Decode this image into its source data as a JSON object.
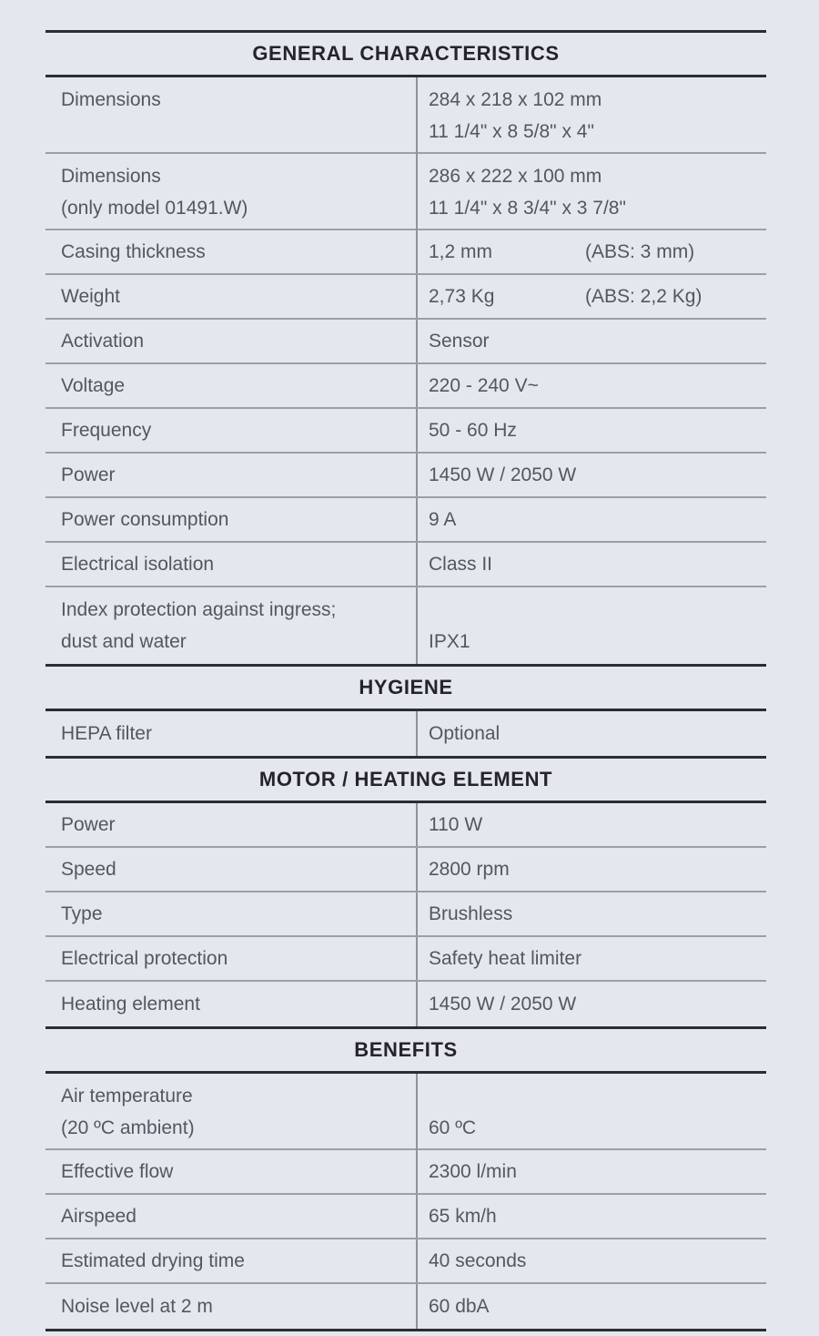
{
  "colors": {
    "background": "#e4e7ee",
    "text": "#53575f",
    "header_text": "#232529",
    "thick_rule": "#2b2d31",
    "thin_rule": "#9aa0a7",
    "column_divider": "#8e949c"
  },
  "table": {
    "sections": [
      {
        "title": "GENERAL CHARACTERISTICS",
        "rows": [
          {
            "label": [
              "Dimensions"
            ],
            "value": [
              "284 x 218 x 102 mm",
              "11 1/4\" x 8 5/8\" x 4\""
            ]
          },
          {
            "label": [
              "Dimensions",
              "(only model 01491.W)"
            ],
            "value": [
              "286 x 222 x 100 mm",
              "11 1/4\" x 8 3/4\" x 3 7/8\""
            ]
          },
          {
            "label": [
              "Casing thickness"
            ],
            "value": [
              "1,2 mm"
            ],
            "value2": "(ABS: 3 mm)"
          },
          {
            "label": [
              "Weight"
            ],
            "value": [
              "2,73 Kg"
            ],
            "value2": "(ABS: 2,2 Kg)"
          },
          {
            "label": [
              "Activation"
            ],
            "value": [
              "Sensor"
            ]
          },
          {
            "label": [
              "Voltage"
            ],
            "value": [
              "220 - 240 V~"
            ]
          },
          {
            "label": [
              "Frequency"
            ],
            "value": [
              "50 - 60 Hz"
            ]
          },
          {
            "label": [
              "Power"
            ],
            "value": [
              "1450 W / 2050 W"
            ]
          },
          {
            "label": [
              "Power consumption"
            ],
            "value": [
              "9 A"
            ]
          },
          {
            "label": [
              "Electrical isolation"
            ],
            "value": [
              "Class II"
            ]
          },
          {
            "label": [
              "Index protection against ingress;",
              "dust and water"
            ],
            "value": [
              "IPX1"
            ],
            "value_align": "bottom"
          }
        ]
      },
      {
        "title": "HYGIENE",
        "rows": [
          {
            "label": [
              "HEPA filter"
            ],
            "value": [
              "Optional"
            ]
          }
        ]
      },
      {
        "title": "MOTOR / HEATING ELEMENT",
        "rows": [
          {
            "label": [
              "Power"
            ],
            "value": [
              "110 W"
            ]
          },
          {
            "label": [
              "Speed"
            ],
            "value": [
              "2800 rpm"
            ]
          },
          {
            "label": [
              "Type"
            ],
            "value": [
              "Brushless"
            ]
          },
          {
            "label": [
              "Electrical protection"
            ],
            "value": [
              "Safety heat limiter"
            ]
          },
          {
            "label": [
              "Heating element"
            ],
            "value": [
              "1450 W / 2050 W"
            ]
          }
        ]
      },
      {
        "title": "BENEFITS",
        "rows": [
          {
            "label": [
              "Air temperature",
              "(20 ºC ambient)"
            ],
            "value": [
              "60 ºC"
            ],
            "value_align": "bottom"
          },
          {
            "label": [
              "Effective flow"
            ],
            "value": [
              "2300 l/min"
            ]
          },
          {
            "label": [
              "Airspeed"
            ],
            "value": [
              "65 km/h"
            ]
          },
          {
            "label": [
              "Estimated drying time"
            ],
            "value": [
              "40 seconds"
            ]
          },
          {
            "label": [
              "Noise level at 2 m"
            ],
            "value": [
              "60 dbA"
            ]
          }
        ]
      }
    ]
  }
}
